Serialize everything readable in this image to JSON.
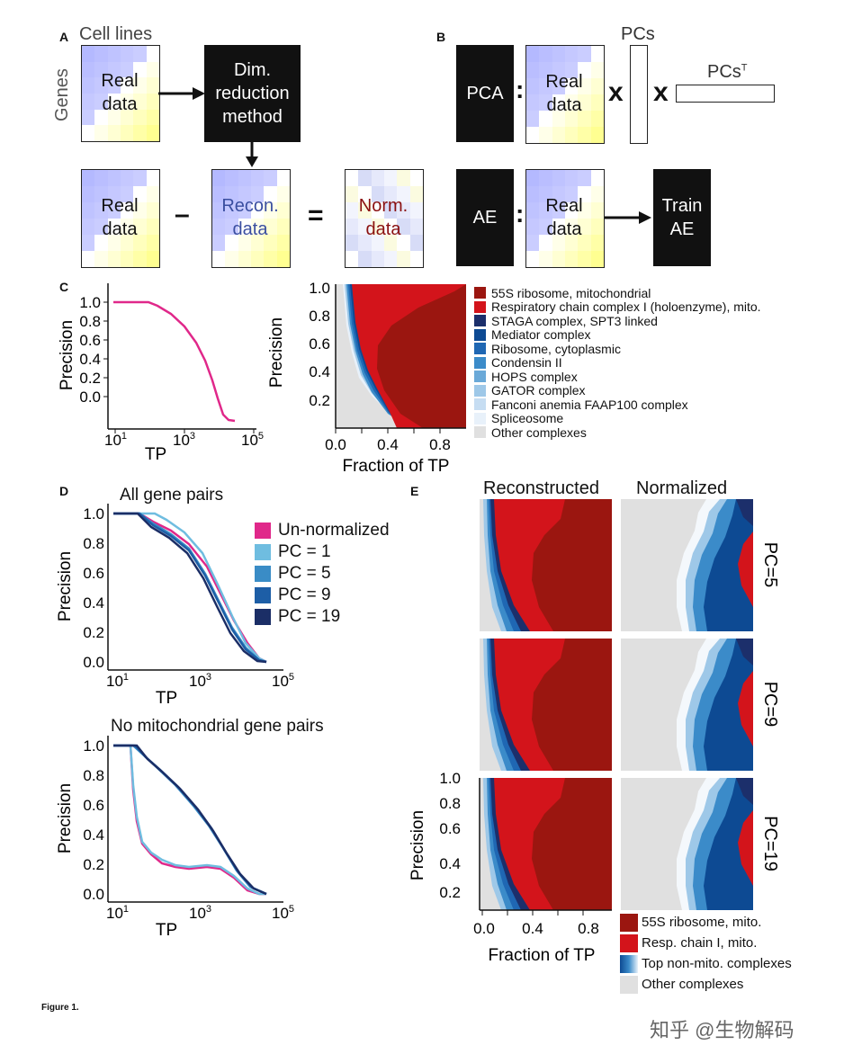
{
  "panel_a": {
    "label": "A",
    "cell_lines": "Cell lines",
    "genes": "Genes",
    "real_data_1": "Real",
    "real_data_2": "data",
    "dim_1": "Dim.",
    "dim_2": "reduction",
    "dim_3": "method",
    "minus": "–",
    "recon_1": "Recon.",
    "recon_2": "data",
    "equals": "=",
    "norm_1": "Norm.",
    "norm_2": "data"
  },
  "panel_b": {
    "label": "B",
    "pca": "PCA",
    "colon": ":",
    "times": "x",
    "pcs": "PCs",
    "pcs_t": "PCs",
    "pcs_t_sup": "T",
    "ae": "AE",
    "train_1": "Train",
    "train_2": "AE"
  },
  "panel_c": {
    "label": "C",
    "legend": [
      {
        "name": "55S ribosome, mitochondrial",
        "color": "#9b1610"
      },
      {
        "name": "Respiratory chain complex I (holoenzyme), mito.",
        "color": "#d3141b"
      },
      {
        "name": "STAGA complex, SPT3 linked",
        "color": "#1c2f6b"
      },
      {
        "name": "Mediator complex",
        "color": "#0d4a93"
      },
      {
        "name": "Ribosome, cytoplasmic",
        "color": "#1f67b3"
      },
      {
        "name": "Condensin II",
        "color": "#3b8bc9"
      },
      {
        "name": "HOPS complex",
        "color": "#6aa9d8"
      },
      {
        "name": "GATOR complex",
        "color": "#9ec8e8"
      },
      {
        "name": "Fanconi anemia FAAP100 complex",
        "color": "#c6ddf2"
      },
      {
        "name": "Spliceosome",
        "color": "#e8f1fa"
      },
      {
        "name": "Other complexes",
        "color": "#e0e0e0"
      }
    ]
  },
  "panel_d": {
    "label": "D",
    "title_top": "All gene pairs",
    "title_bottom": "No mitochondrial gene pairs",
    "legend": [
      {
        "name": "Un-normalized",
        "color": "#e0288a"
      },
      {
        "name": "PC = 1",
        "color": "#6fbde0"
      },
      {
        "name": "PC = 5",
        "color": "#3a8cc6"
      },
      {
        "name": "PC = 9",
        "color": "#1d5ea6"
      },
      {
        "name": "PC = 19",
        "color": "#1b2e66"
      }
    ]
  },
  "panel_e": {
    "label": "E",
    "col_reconstructed": "Reconstructed",
    "col_normalized": "Normalized",
    "row_labels": [
      "PC=5",
      "PC=9",
      "PC=19"
    ],
    "legend": [
      {
        "name": "55S ribosome, mito.",
        "color": "#9b1610"
      },
      {
        "name": "Resp. chain I, mito.",
        "color": "#d3141b"
      },
      {
        "name": "Top non-mito. complexes",
        "color": "#1f67b3"
      },
      {
        "name": "Other complexes",
        "color": "#e0e0e0"
      }
    ]
  },
  "axes": {
    "precision": "Precision",
    "tp": "TP",
    "fraction_tp": "Fraction of TP",
    "prec_ticks": [
      "1.0",
      "0.8",
      "0.6",
      "0.4",
      "0.2",
      "0.0"
    ],
    "prec_ticks_area": [
      "1.0",
      "0.8",
      "0.6",
      "0.4",
      "0.2"
    ],
    "frac_ticks": [
      "0.0",
      "0.4",
      "0.8"
    ],
    "log_ticks": [
      "10",
      "10",
      "10"
    ],
    "log_exps": [
      "1",
      "3",
      "5"
    ]
  },
  "figure_caption": "Figure 1.",
  "watermark": "知乎 @生物解码"
}
